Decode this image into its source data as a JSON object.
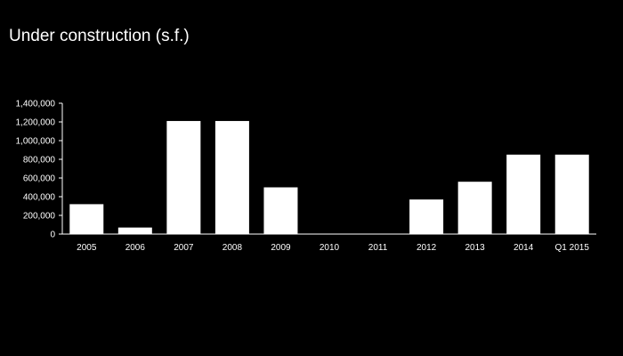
{
  "chart_data": {
    "type": "bar",
    "title": "Under construction (s.f.)",
    "categories": [
      "2005",
      "2006",
      "2007",
      "2008",
      "2009",
      "2010",
      "2011",
      "2012",
      "2013",
      "2014",
      "Q1 2015"
    ],
    "values": [
      320000,
      70000,
      1210000,
      1210000,
      500000,
      0,
      0,
      370000,
      560000,
      850000,
      850000
    ],
    "ylim": [
      0,
      1400000
    ],
    "yticks": [
      0,
      200000,
      400000,
      600000,
      800000,
      1000000,
      1200000,
      1400000
    ],
    "ytick_labels": [
      "0",
      "200,000",
      "400,000",
      "600,000",
      "800,000",
      "1,000,000",
      "1,200,000",
      "1,400,000"
    ],
    "xlabel": "",
    "ylabel": "",
    "grid": false,
    "legend": "none",
    "colors": {
      "background": "#000000",
      "bar": "#ffffff",
      "axis": "#ffffff",
      "text": "#ffffff"
    }
  }
}
